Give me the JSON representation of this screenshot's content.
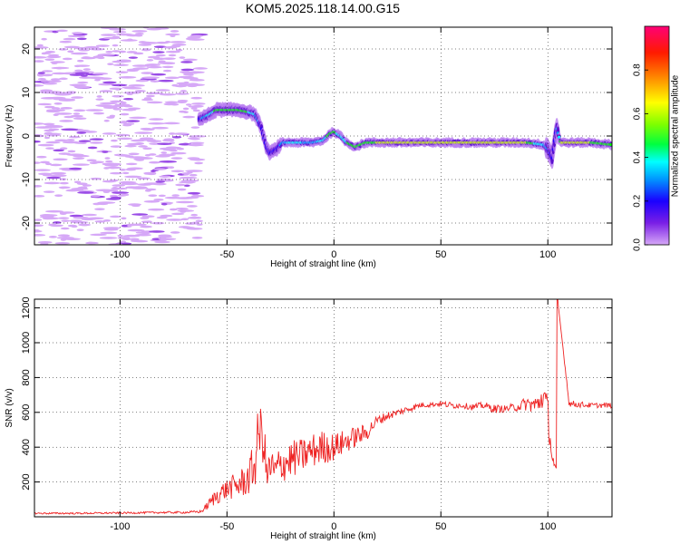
{
  "title": "KOM5.2025.118.14.00.G15",
  "chart_data": [
    {
      "type": "heatmap",
      "xlabel": "Height of straight line (km)",
      "ylabel": "Frequency (Hz)",
      "xlim": [
        -140,
        130
      ],
      "ylim": [
        -25,
        25
      ],
      "x_ticks": [
        -100,
        -50,
        0,
        50,
        100
      ],
      "y_ticks": [
        -20,
        -10,
        0,
        10,
        20
      ],
      "colorbar": {
        "label": "Normalized spectral amplitude",
        "range": [
          0.0,
          1.0
        ],
        "ticks": [
          "0.0",
          "0.2",
          "0.4",
          "0.6",
          "0.8"
        ],
        "colormap": "rainbow (violet-blue-cyan-green-yellow-red-magenta)"
      },
      "ridge_track": {
        "x": [
          -62,
          -58,
          -55,
          -50,
          -45,
          -40,
          -37,
          -34,
          -32,
          -30,
          -27,
          -24,
          -20,
          -15,
          -10,
          -5,
          -2,
          0,
          3,
          6,
          10,
          15,
          20,
          30,
          40,
          50,
          60,
          70,
          80,
          90,
          98,
          100,
          102,
          104,
          106,
          110,
          120,
          130
        ],
        "frequency": [
          4,
          5,
          6,
          6,
          6,
          5.5,
          5,
          2,
          -2,
          -4,
          -3,
          -1.5,
          -1.5,
          -1.5,
          -1.5,
          -1,
          0.5,
          1,
          0,
          -1.5,
          -2.5,
          -1.5,
          -1.5,
          -1.5,
          -1.5,
          -1.5,
          -1.5,
          -1.5,
          -1.5,
          -1.5,
          -2,
          -3,
          -5,
          2,
          -1.5,
          -1.5,
          -1.5,
          -2
        ],
        "amplitude": [
          0.2,
          0.35,
          0.4,
          0.45,
          0.4,
          0.38,
          0.3,
          0.15,
          0.12,
          0.1,
          0.15,
          0.25,
          0.35,
          0.3,
          0.25,
          0.35,
          0.4,
          0.42,
          0.3,
          0.38,
          0.4,
          0.45,
          0.45,
          0.5,
          0.55,
          0.6,
          0.55,
          0.5,
          0.55,
          0.45,
          0.3,
          0.2,
          0.15,
          0.2,
          0.45,
          0.5,
          0.45,
          0.4
        ]
      }
    },
    {
      "type": "line",
      "xlabel": "Height of straight line (km)",
      "ylabel": "SNR (v/v)",
      "xlim": [
        -140,
        130
      ],
      "ylim": [
        0,
        1250
      ],
      "x_ticks": [
        -100,
        -50,
        0,
        50,
        100
      ],
      "y_ticks": [
        200,
        400,
        600,
        800,
        1000,
        1200
      ],
      "color": "#ee2222",
      "series": [
        {
          "x": [
            -140,
            -120,
            -100,
            -80,
            -70,
            -62,
            -58,
            -55,
            -50,
            -45,
            -40,
            -37,
            -35,
            -33,
            -31,
            -30,
            -28,
            -25,
            -20,
            -15,
            -10,
            -5,
            0,
            5,
            10,
            15,
            20,
            25,
            30,
            35,
            40,
            45,
            50,
            55,
            60,
            65,
            70,
            75,
            80,
            85,
            90,
            95,
            98,
            100,
            101,
            102,
            103,
            104,
            105,
            110,
            120,
            130
          ],
          "y": [
            20,
            20,
            22,
            25,
            25,
            30,
            80,
            120,
            160,
            180,
            220,
            300,
            500,
            450,
            200,
            300,
            250,
            300,
            330,
            350,
            380,
            400,
            400,
            430,
            460,
            480,
            550,
            580,
            600,
            620,
            640,
            645,
            650,
            640,
            640,
            630,
            640,
            620,
            620,
            630,
            650,
            640,
            700,
            600,
            450,
            350,
            300,
            250,
            1200,
            650,
            640,
            640
          ],
          "noise": [
            5,
            5,
            5,
            6,
            6,
            8,
            30,
            50,
            60,
            80,
            100,
            150,
            180,
            150,
            100,
            120,
            120,
            110,
            110,
            100,
            100,
            100,
            80,
            70,
            60,
            50,
            30,
            25,
            20,
            20,
            15,
            15,
            15,
            20,
            15,
            20,
            20,
            25,
            20,
            25,
            40,
            60,
            80,
            100,
            60,
            40,
            30,
            30,
            0,
            20,
            15,
            15
          ]
        }
      ]
    }
  ]
}
